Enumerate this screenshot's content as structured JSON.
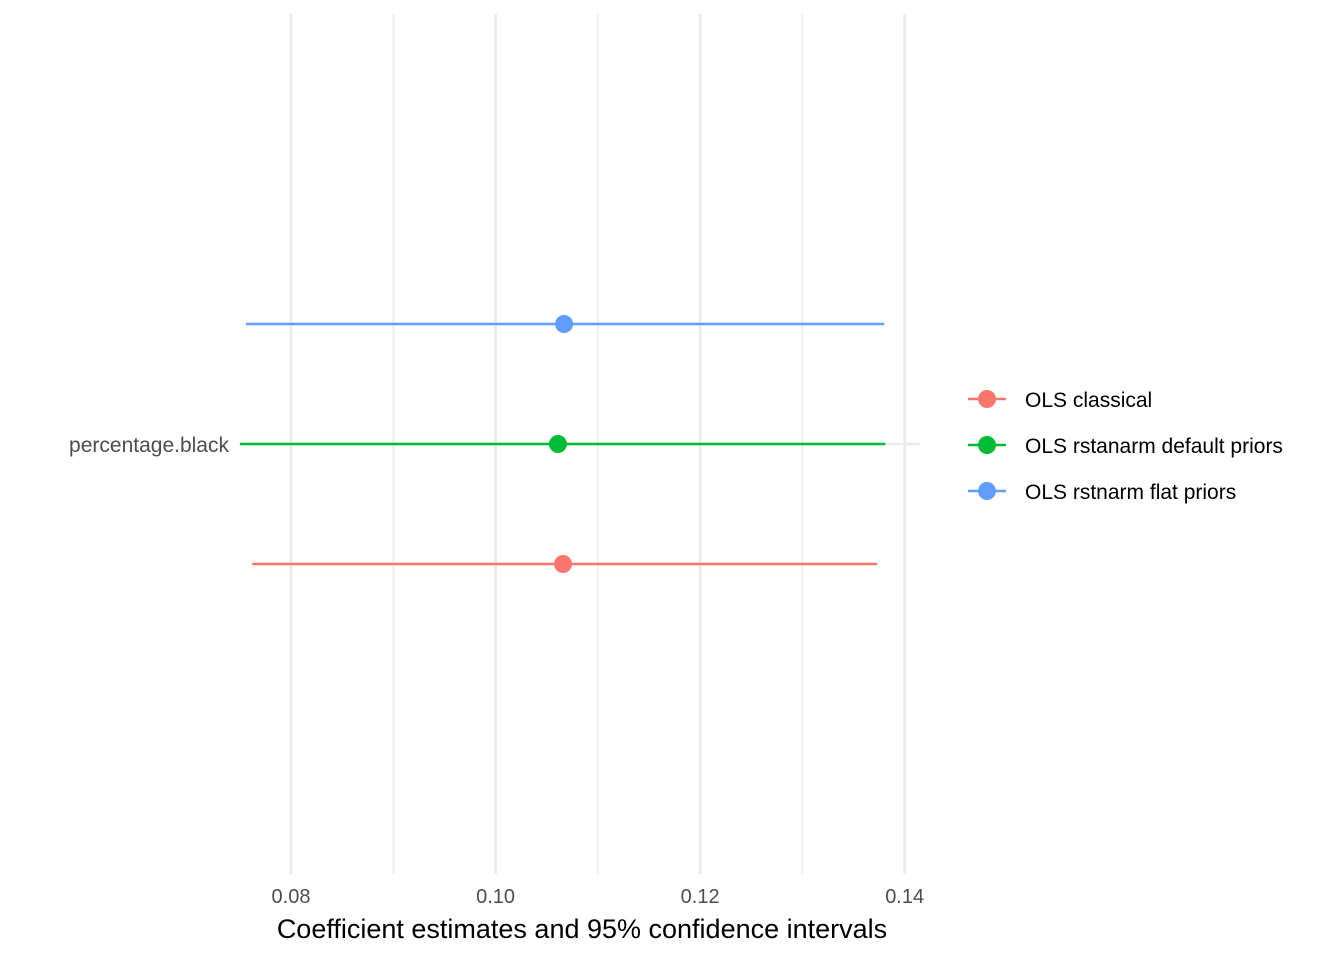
{
  "chart_data": {
    "type": "coefficient-plot",
    "xlabel": "Coefficient estimates and 95% confidence intervals",
    "ylabel": "",
    "xlim": [
      0.0755,
      0.1415
    ],
    "x_ticks": [
      0.08,
      0.1,
      0.12,
      0.14
    ],
    "x_tick_labels": [
      "0.08",
      "0.10",
      "0.12",
      "0.14"
    ],
    "x_minor_ticks": [
      0.09,
      0.11,
      0.13
    ],
    "categories": [
      "percentage.black"
    ],
    "grid": true,
    "legend": "right",
    "series": [
      {
        "name": "OLS classical",
        "color": "#F8766D",
        "estimate": 0.1066,
        "lower": 0.0762,
        "upper": 0.1373
      },
      {
        "name": "OLS rstanarm default priors",
        "color": "#00BA38",
        "estimate": 0.1061,
        "lower": 0.075,
        "upper": 0.1381
      },
      {
        "name": "OLS rstnarm flat priors",
        "color": "#619CFF",
        "estimate": 0.1067,
        "lower": 0.0756,
        "upper": 0.138
      }
    ]
  }
}
